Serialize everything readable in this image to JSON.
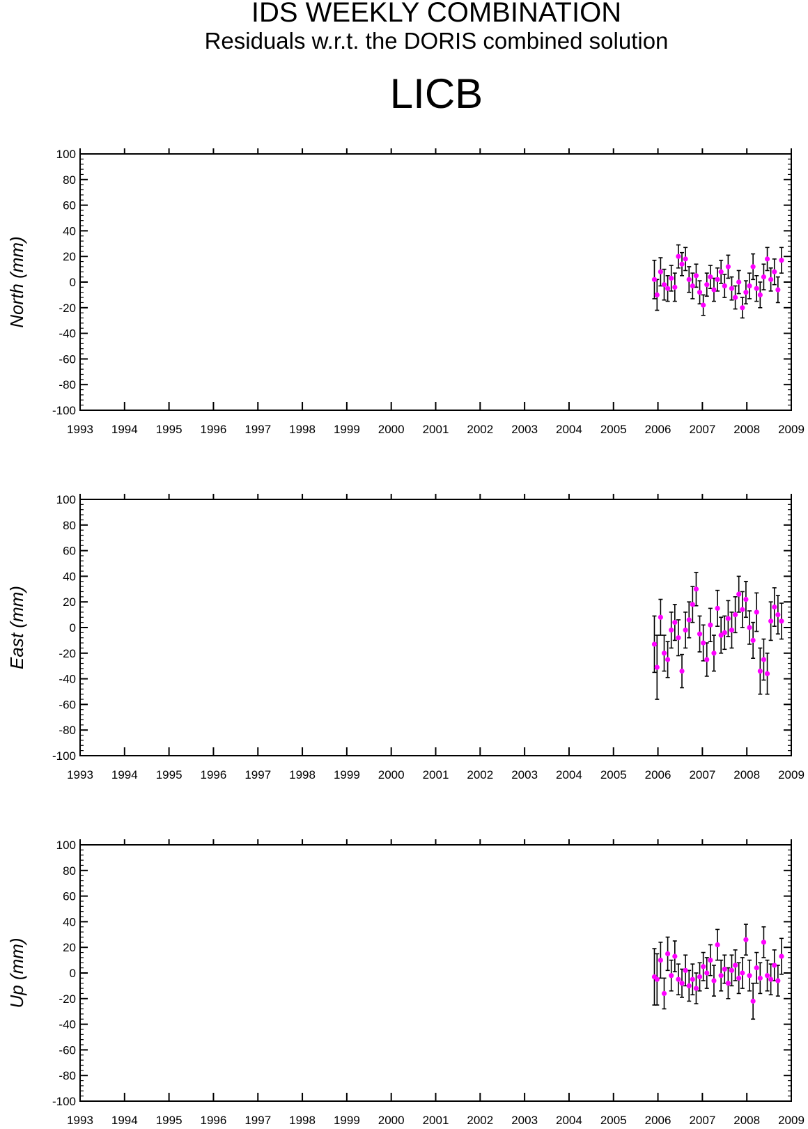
{
  "header": {
    "title": "IDS WEEKLY COMBINATION",
    "subtitle": "Residuals w.r.t. the DORIS combined solution",
    "station": "LICB"
  },
  "chart_data": [
    {
      "type": "scatter",
      "ylabel": "North (mm)",
      "xlim": [
        1993,
        2009
      ],
      "ylim": [
        -100,
        100
      ],
      "x_ticks": [
        "1993",
        "1994",
        "1995",
        "1996",
        "1997",
        "1998",
        "1999",
        "2000",
        "2001",
        "2002",
        "2003",
        "2004",
        "2005",
        "2006",
        "2007",
        "2008",
        "2009"
      ],
      "y_ticks": [
        "100",
        "80",
        "60",
        "40",
        "20",
        "0",
        "-20",
        "-40",
        "-60",
        "-80",
        "-100"
      ],
      "marker_color": "#ff00ff",
      "errorbar_color": "#000000",
      "grid": false,
      "series": [
        {
          "x": [
            2005.92,
            2005.98,
            2006.06,
            2006.14,
            2006.22,
            2006.3,
            2006.38,
            2006.46,
            2006.54,
            2006.62,
            2006.7,
            2006.78,
            2006.86,
            2006.94,
            2007.02,
            2007.1,
            2007.18,
            2007.26,
            2007.34,
            2007.42,
            2007.5,
            2007.58,
            2007.66,
            2007.74,
            2007.82,
            2007.9,
            2007.98,
            2008.06,
            2008.14,
            2008.22,
            2008.3,
            2008.38,
            2008.46,
            2008.54,
            2008.62,
            2008.7,
            2008.78
          ],
          "y": [
            2,
            -10,
            8,
            -2,
            -5,
            3,
            -4,
            20,
            14,
            18,
            2,
            -3,
            5,
            -8,
            -18,
            -2,
            4,
            -6,
            2,
            8,
            -3,
            12,
            -5,
            -12,
            0,
            -20,
            -8,
            -3,
            12,
            -5,
            -10,
            4,
            18,
            2,
            8,
            -6,
            17
          ],
          "err": [
            15,
            12,
            11,
            12,
            10,
            10,
            11,
            9,
            9,
            9,
            10,
            10,
            9,
            9,
            8,
            9,
            9,
            9,
            9,
            9,
            9,
            9,
            9,
            9,
            9,
            8,
            9,
            10,
            10,
            10,
            10,
            10,
            9,
            9,
            10,
            10,
            10
          ]
        }
      ]
    },
    {
      "type": "scatter",
      "ylabel": "East (mm)",
      "xlim": [
        1993,
        2009
      ],
      "ylim": [
        -100,
        100
      ],
      "x_ticks": [
        "1993",
        "1994",
        "1995",
        "1996",
        "1997",
        "1998",
        "1999",
        "2000",
        "2001",
        "2002",
        "2003",
        "2004",
        "2005",
        "2006",
        "2007",
        "2008",
        "2009"
      ],
      "y_ticks": [
        "100",
        "80",
        "60",
        "40",
        "20",
        "0",
        "-20",
        "-40",
        "-60",
        "-80",
        "-100"
      ],
      "marker_color": "#ff00ff",
      "errorbar_color": "#000000",
      "grid": false,
      "series": [
        {
          "x": [
            2005.92,
            2005.98,
            2006.06,
            2006.14,
            2006.22,
            2006.3,
            2006.38,
            2006.46,
            2006.54,
            2006.62,
            2006.7,
            2006.78,
            2006.86,
            2006.94,
            2007.02,
            2007.1,
            2007.18,
            2007.26,
            2007.34,
            2007.42,
            2007.5,
            2007.58,
            2007.66,
            2007.74,
            2007.82,
            2007.9,
            2007.98,
            2008.06,
            2008.14,
            2008.22,
            2008.3,
            2008.38,
            2008.46,
            2008.54,
            2008.62,
            2008.7,
            2008.78
          ],
          "y": [
            -13,
            -31,
            8,
            -20,
            -25,
            -2,
            4,
            -8,
            -34,
            -2,
            6,
            18,
            30,
            -5,
            -12,
            -25,
            2,
            -20,
            15,
            -6,
            -4,
            7,
            -2,
            10,
            26,
            14,
            22,
            0,
            -10,
            12,
            -34,
            -25,
            -36,
            5,
            16,
            10,
            5
          ],
          "err": [
            22,
            25,
            14,
            14,
            14,
            14,
            14,
            14,
            13,
            14,
            14,
            14,
            13,
            14,
            14,
            13,
            13,
            14,
            14,
            14,
            13,
            14,
            14,
            14,
            14,
            14,
            14,
            13,
            14,
            15,
            18,
            16,
            16,
            15,
            15,
            15,
            14
          ]
        }
      ]
    },
    {
      "type": "scatter",
      "ylabel": "Up (mm)",
      "xlim": [
        1993,
        2009
      ],
      "ylim": [
        -100,
        100
      ],
      "x_ticks": [
        "1993",
        "1994",
        "1995",
        "1996",
        "1997",
        "1998",
        "1999",
        "2000",
        "2001",
        "2002",
        "2003",
        "2004",
        "2005",
        "2006",
        "2007",
        "2008",
        "2009"
      ],
      "y_ticks": [
        "100",
        "80",
        "60",
        "40",
        "20",
        "0",
        "-20",
        "-40",
        "-60",
        "-80",
        "-100"
      ],
      "marker_color": "#ff00ff",
      "errorbar_color": "#000000",
      "grid": false,
      "series": [
        {
          "x": [
            2005.92,
            2005.98,
            2006.06,
            2006.14,
            2006.22,
            2006.3,
            2006.38,
            2006.46,
            2006.54,
            2006.62,
            2006.7,
            2006.78,
            2006.86,
            2006.94,
            2007.02,
            2007.1,
            2007.18,
            2007.26,
            2007.34,
            2007.42,
            2007.5,
            2007.58,
            2007.66,
            2007.74,
            2007.82,
            2007.9,
            2007.98,
            2008.06,
            2008.14,
            2008.22,
            2008.3,
            2008.38,
            2008.46,
            2008.54,
            2008.62,
            2008.7,
            2008.78
          ],
          "y": [
            -3,
            -5,
            10,
            -16,
            15,
            -2,
            13,
            -5,
            -8,
            2,
            -10,
            -5,
            -12,
            -3,
            5,
            0,
            10,
            -6,
            22,
            -2,
            3,
            -8,
            2,
            6,
            -4,
            0,
            26,
            -2,
            -22,
            4,
            -4,
            24,
            -2,
            -5,
            6,
            -6,
            13
          ],
          "err": [
            22,
            20,
            14,
            12,
            13,
            12,
            12,
            12,
            11,
            12,
            12,
            12,
            12,
            11,
            11,
            12,
            12,
            12,
            12,
            12,
            11,
            12,
            12,
            12,
            12,
            12,
            12,
            12,
            14,
            12,
            12,
            12,
            12,
            12,
            12,
            12,
            14
          ]
        }
      ]
    }
  ]
}
